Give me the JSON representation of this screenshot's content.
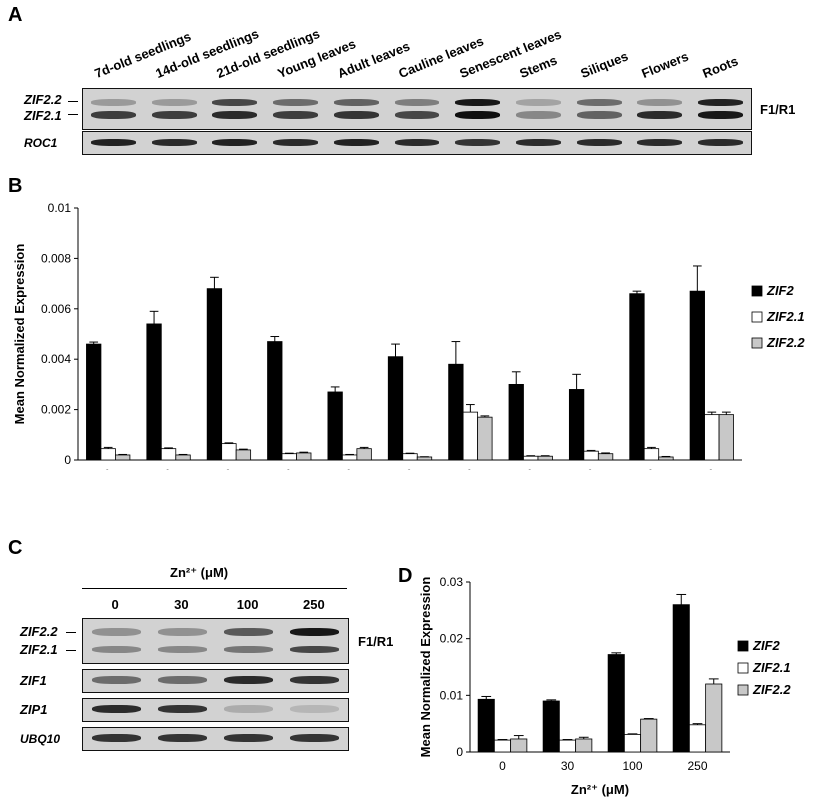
{
  "panels": {
    "a": {
      "letter": "A",
      "lanes": [
        "7d-old seedlings",
        "14d-old seedlings",
        "21d-old seedlings",
        "Young leaves",
        "Adult leaves",
        "Cauline leaves",
        "Senescent leaves",
        "Stems",
        "Siliques",
        "Flowers",
        "Roots"
      ],
      "band_labels": [
        "ZIF2.2",
        "ZIF2.1"
      ],
      "control_label": "ROC1",
      "primer_label": "F1/R1",
      "zif22_intensity": [
        0.25,
        0.25,
        0.7,
        0.5,
        0.55,
        0.4,
        0.95,
        0.2,
        0.5,
        0.3,
        0.9
      ],
      "zif21_intensity": [
        0.75,
        0.75,
        0.85,
        0.75,
        0.8,
        0.7,
        1.0,
        0.35,
        0.55,
        0.85,
        0.95
      ],
      "roc1_intensity": [
        0.9,
        0.85,
        0.9,
        0.85,
        0.9,
        0.85,
        0.8,
        0.85,
        0.85,
        0.85,
        0.85
      ]
    },
    "b": {
      "letter": "B"
    },
    "c": {
      "letter": "C",
      "treatment_label": "Zn²⁺ (μM)",
      "lanes": [
        "0",
        "30",
        "100",
        "250"
      ],
      "band_labels": [
        "ZIF2.2",
        "ZIF2.1"
      ],
      "primer_label": "F1/R1",
      "row_labels": [
        "ZIF1",
        "ZIP1",
        "UBQ10"
      ],
      "zif22_intensity": [
        0.3,
        0.3,
        0.6,
        0.95
      ],
      "zif21_intensity": [
        0.35,
        0.35,
        0.45,
        0.7
      ],
      "zif1_intensity": [
        0.5,
        0.5,
        0.85,
        0.8
      ],
      "zip1_intensity": [
        0.85,
        0.8,
        0.15,
        0.1
      ],
      "ubq10_intensity": [
        0.8,
        0.8,
        0.8,
        0.8
      ]
    },
    "d": {
      "letter": "D"
    }
  },
  "chart_data": [
    {
      "panel": "B",
      "type": "bar",
      "categories": [
        "7d-old seedlings",
        "14d-old seedlings",
        "21d-old seedlings",
        "Young leaves",
        "Adult leaves",
        "Cauline leaves",
        "Senescent leaves",
        "Stems",
        "Siliques",
        "Flowers",
        "Roots"
      ],
      "series": [
        {
          "name": "ZIF2",
          "color": "#000000",
          "values": [
            0.0046,
            0.0054,
            0.0068,
            0.0047,
            0.0027,
            0.0041,
            0.0038,
            0.003,
            0.0028,
            0.0066,
            0.0067
          ],
          "errors": [
            8e-05,
            0.0005,
            0.00045,
            0.0002,
            0.0002,
            0.0005,
            0.0009,
            0.0005,
            0.0006,
            0.0001,
            0.001
          ]
        },
        {
          "name": "ZIF2.1",
          "color": "#ffffff",
          "values": [
            0.00045,
            0.00045,
            0.00065,
            0.00025,
            0.0002,
            0.00025,
            0.0019,
            0.00015,
            0.00035,
            0.00045,
            0.0018
          ],
          "errors": [
            5e-05,
            3e-05,
            3e-05,
            2e-05,
            2e-05,
            2e-05,
            0.0003,
            2e-05,
            3e-05,
            5e-05,
            0.0001
          ]
        },
        {
          "name": "ZIF2.2",
          "color": "#c8c8c8",
          "values": [
            0.0002,
            0.0002,
            0.0004,
            0.00028,
            0.00045,
            0.00012,
            0.0017,
            0.00015,
            0.00025,
            0.00012,
            0.0018
          ],
          "errors": [
            2e-05,
            2e-05,
            3e-05,
            3e-05,
            5e-05,
            1e-05,
            5e-05,
            2e-05,
            3e-05,
            2e-05,
            0.0001
          ]
        }
      ],
      "ylabel": "Mean Normalized Expression",
      "ylim": [
        0,
        0.01
      ],
      "yticks": [
        "0",
        "0.002",
        "0.004",
        "0.006",
        "0.008",
        "0.01"
      ],
      "legend": "right",
      "grid": false
    },
    {
      "panel": "D",
      "type": "bar",
      "categories": [
        "0",
        "30",
        "100",
        "250"
      ],
      "series": [
        {
          "name": "ZIF2",
          "color": "#000000",
          "values": [
            0.0093,
            0.009,
            0.0172,
            0.026
          ],
          "errors": [
            0.0005,
            0.0002,
            0.0003,
            0.0018
          ]
        },
        {
          "name": "ZIF2.1",
          "color": "#ffffff",
          "values": [
            0.0021,
            0.0021,
            0.0031,
            0.0048
          ],
          "errors": [
            0.0001,
            0.0001,
            0.0001,
            0.0002
          ]
        },
        {
          "name": "ZIF2.2",
          "color": "#c8c8c8",
          "values": [
            0.0023,
            0.0023,
            0.0058,
            0.012
          ],
          "errors": [
            0.0006,
            0.0003,
            0.0001,
            0.0009
          ]
        }
      ],
      "xlabel": "Zn²⁺ (μM)",
      "ylabel": "Mean Normalized Expression",
      "ylim": [
        0,
        0.03
      ],
      "yticks": [
        "0",
        "0.01",
        "0.02",
        "0.03"
      ],
      "legend": "right",
      "grid": false
    }
  ]
}
